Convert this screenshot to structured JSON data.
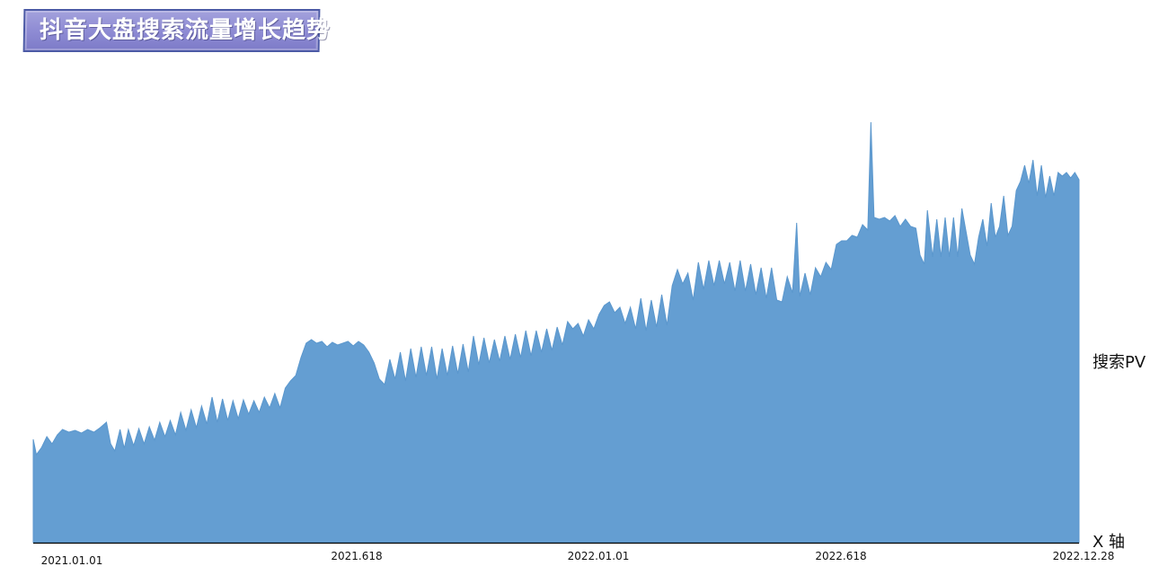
{
  "chart_data": {
    "type": "area",
    "title": "抖音大盘搜索流量增长趋势",
    "series_label": "搜索PV",
    "x_axis_label": "X 轴",
    "x_ticks": [
      {
        "label": "2021.01.01",
        "x": 0
      },
      {
        "label": "2021.618",
        "x": 0.29
      },
      {
        "label": "2022.01.01",
        "x": 0.52
      },
      {
        "label": "2022.618",
        "x": 0.775
      },
      {
        "label": "2022.12.28",
        "x": 1.0
      }
    ],
    "ylim": [
      0,
      480
    ],
    "points": [
      [
        0.0,
        115
      ],
      [
        0.003,
        98
      ],
      [
        0.008,
        106
      ],
      [
        0.013,
        118
      ],
      [
        0.018,
        110
      ],
      [
        0.023,
        120
      ],
      [
        0.028,
        126
      ],
      [
        0.034,
        123
      ],
      [
        0.04,
        125
      ],
      [
        0.046,
        122
      ],
      [
        0.052,
        126
      ],
      [
        0.058,
        123
      ],
      [
        0.064,
        128
      ],
      [
        0.07,
        134
      ],
      [
        0.074,
        110
      ],
      [
        0.078,
        102
      ],
      [
        0.083,
        126
      ],
      [
        0.087,
        105
      ],
      [
        0.091,
        126
      ],
      [
        0.096,
        108
      ],
      [
        0.101,
        127
      ],
      [
        0.106,
        110
      ],
      [
        0.111,
        129
      ],
      [
        0.116,
        114
      ],
      [
        0.121,
        134
      ],
      [
        0.126,
        118
      ],
      [
        0.131,
        136
      ],
      [
        0.136,
        120
      ],
      [
        0.141,
        145
      ],
      [
        0.146,
        125
      ],
      [
        0.151,
        148
      ],
      [
        0.156,
        128
      ],
      [
        0.161,
        152
      ],
      [
        0.166,
        132
      ],
      [
        0.171,
        162
      ],
      [
        0.176,
        134
      ],
      [
        0.181,
        160
      ],
      [
        0.186,
        136
      ],
      [
        0.191,
        158
      ],
      [
        0.196,
        138
      ],
      [
        0.201,
        159
      ],
      [
        0.206,
        143
      ],
      [
        0.211,
        158
      ],
      [
        0.216,
        145
      ],
      [
        0.221,
        162
      ],
      [
        0.226,
        150
      ],
      [
        0.231,
        166
      ],
      [
        0.236,
        150
      ],
      [
        0.241,
        172
      ],
      [
        0.246,
        180
      ],
      [
        0.251,
        186
      ],
      [
        0.256,
        206
      ],
      [
        0.261,
        222
      ],
      [
        0.266,
        226
      ],
      [
        0.271,
        222
      ],
      [
        0.276,
        224
      ],
      [
        0.281,
        218
      ],
      [
        0.286,
        223
      ],
      [
        0.291,
        220
      ],
      [
        0.296,
        222
      ],
      [
        0.301,
        224
      ],
      [
        0.306,
        219
      ],
      [
        0.311,
        224
      ],
      [
        0.316,
        220
      ],
      [
        0.321,
        212
      ],
      [
        0.326,
        200
      ],
      [
        0.331,
        182
      ],
      [
        0.336,
        176
      ],
      [
        0.341,
        204
      ],
      [
        0.346,
        182
      ],
      [
        0.351,
        212
      ],
      [
        0.356,
        180
      ],
      [
        0.361,
        216
      ],
      [
        0.366,
        184
      ],
      [
        0.371,
        218
      ],
      [
        0.376,
        186
      ],
      [
        0.381,
        218
      ],
      [
        0.386,
        182
      ],
      [
        0.391,
        216
      ],
      [
        0.396,
        186
      ],
      [
        0.401,
        219
      ],
      [
        0.406,
        188
      ],
      [
        0.411,
        221
      ],
      [
        0.416,
        190
      ],
      [
        0.421,
        230
      ],
      [
        0.426,
        198
      ],
      [
        0.431,
        228
      ],
      [
        0.436,
        200
      ],
      [
        0.441,
        226
      ],
      [
        0.446,
        202
      ],
      [
        0.451,
        230
      ],
      [
        0.456,
        204
      ],
      [
        0.461,
        232
      ],
      [
        0.466,
        206
      ],
      [
        0.471,
        236
      ],
      [
        0.476,
        208
      ],
      [
        0.481,
        236
      ],
      [
        0.486,
        212
      ],
      [
        0.491,
        238
      ],
      [
        0.496,
        214
      ],
      [
        0.501,
        240
      ],
      [
        0.506,
        220
      ],
      [
        0.511,
        246
      ],
      [
        0.516,
        238
      ],
      [
        0.521,
        244
      ],
      [
        0.526,
        230
      ],
      [
        0.531,
        248
      ],
      [
        0.536,
        238
      ],
      [
        0.541,
        254
      ],
      [
        0.546,
        264
      ],
      [
        0.551,
        268
      ],
      [
        0.556,
        256
      ],
      [
        0.561,
        262
      ],
      [
        0.566,
        244
      ],
      [
        0.571,
        262
      ],
      [
        0.576,
        238
      ],
      [
        0.581,
        272
      ],
      [
        0.586,
        236
      ],
      [
        0.591,
        270
      ],
      [
        0.596,
        240
      ],
      [
        0.601,
        276
      ],
      [
        0.606,
        242
      ],
      [
        0.611,
        286
      ],
      [
        0.616,
        304
      ],
      [
        0.621,
        288
      ],
      [
        0.626,
        300
      ],
      [
        0.631,
        270
      ],
      [
        0.636,
        312
      ],
      [
        0.641,
        282
      ],
      [
        0.646,
        314
      ],
      [
        0.651,
        286
      ],
      [
        0.656,
        314
      ],
      [
        0.661,
        288
      ],
      [
        0.666,
        312
      ],
      [
        0.671,
        280
      ],
      [
        0.676,
        314
      ],
      [
        0.681,
        280
      ],
      [
        0.686,
        310
      ],
      [
        0.691,
        276
      ],
      [
        0.696,
        306
      ],
      [
        0.701,
        272
      ],
      [
        0.706,
        306
      ],
      [
        0.711,
        270
      ],
      [
        0.716,
        268
      ],
      [
        0.721,
        296
      ],
      [
        0.726,
        278
      ],
      [
        0.73,
        356
      ],
      [
        0.733,
        274
      ],
      [
        0.738,
        300
      ],
      [
        0.743,
        276
      ],
      [
        0.748,
        306
      ],
      [
        0.753,
        296
      ],
      [
        0.758,
        312
      ],
      [
        0.763,
        304
      ],
      [
        0.768,
        332
      ],
      [
        0.773,
        336
      ],
      [
        0.778,
        336
      ],
      [
        0.783,
        342
      ],
      [
        0.788,
        340
      ],
      [
        0.793,
        354
      ],
      [
        0.798,
        348
      ],
      [
        0.801,
        468
      ],
      [
        0.804,
        362
      ],
      [
        0.809,
        360
      ],
      [
        0.814,
        362
      ],
      [
        0.819,
        358
      ],
      [
        0.824,
        364
      ],
      [
        0.829,
        352
      ],
      [
        0.834,
        360
      ],
      [
        0.839,
        352
      ],
      [
        0.844,
        350
      ],
      [
        0.848,
        320
      ],
      [
        0.852,
        310
      ],
      [
        0.855,
        370
      ],
      [
        0.86,
        318
      ],
      [
        0.864,
        360
      ],
      [
        0.868,
        318
      ],
      [
        0.872,
        362
      ],
      [
        0.876,
        318
      ],
      [
        0.88,
        362
      ],
      [
        0.884,
        318
      ],
      [
        0.888,
        372
      ],
      [
        0.892,
        346
      ],
      [
        0.896,
        320
      ],
      [
        0.9,
        310
      ],
      [
        0.904,
        340
      ],
      [
        0.908,
        360
      ],
      [
        0.912,
        330
      ],
      [
        0.916,
        378
      ],
      [
        0.92,
        340
      ],
      [
        0.924,
        352
      ],
      [
        0.928,
        386
      ],
      [
        0.932,
        342
      ],
      [
        0.936,
        352
      ],
      [
        0.94,
        392
      ],
      [
        0.944,
        402
      ],
      [
        0.948,
        420
      ],
      [
        0.952,
        400
      ],
      [
        0.956,
        426
      ],
      [
        0.96,
        386
      ],
      [
        0.964,
        420
      ],
      [
        0.968,
        384
      ],
      [
        0.972,
        408
      ],
      [
        0.976,
        386
      ],
      [
        0.98,
        412
      ],
      [
        0.984,
        408
      ],
      [
        0.988,
        412
      ],
      [
        0.992,
        406
      ],
      [
        0.996,
        412
      ],
      [
        1.0,
        404
      ]
    ]
  }
}
